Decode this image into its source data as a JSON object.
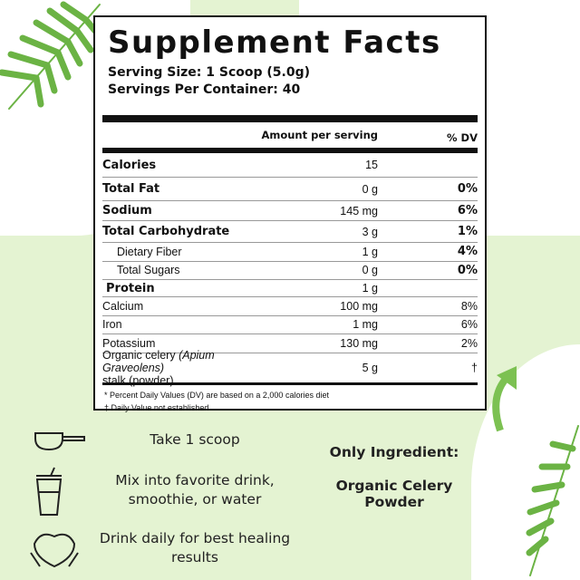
{
  "facts": {
    "title": "Supplement Facts",
    "serving_size": "Serving Size: 1 Scoop (5.0g)",
    "servings_per_container": "Servings Per Container: 40",
    "amount_header": "Amount per serving",
    "dv_header": "% DV",
    "rows": [
      {
        "name": "Calories",
        "amount": "15",
        "dv": ""
      },
      {
        "name": "Total Fat",
        "amount": "0 g",
        "dv": "0%"
      },
      {
        "name": "Sodium",
        "amount": "145 mg",
        "dv": "6%"
      },
      {
        "name": "Total Carbohydrate",
        "amount": "3 g",
        "dv": "1%"
      },
      {
        "name": "Dietary Fiber",
        "amount": "1 g",
        "dv": "4%"
      },
      {
        "name": "Total Sugars",
        "amount": "0 g",
        "dv": "0%"
      },
      {
        "name": "Protein",
        "amount": "1 g",
        "dv": ""
      },
      {
        "name": "Calcium",
        "amount": "100 mg",
        "dv": "8%"
      },
      {
        "name": "Iron",
        "amount": "1 mg",
        "dv": "6%"
      },
      {
        "name": "Potassium",
        "amount": "130 mg",
        "dv": "2%"
      }
    ],
    "celery": {
      "name_prefix": "Organic celery ",
      "name_latin": "(Apium Graveolens)",
      "name_suffix": "stalk (powder)",
      "amount": "5 g",
      "dv": "†"
    },
    "footnote_1": "* Percent Daily Values (DV) are based on a 2,000 calories diet",
    "footnote_2": "† Daily Value not established."
  },
  "steps": [
    {
      "icon": "scoop-icon",
      "text": "Take 1 scoop"
    },
    {
      "icon": "drink-cup-icon",
      "text": "Mix into favorite drink, smoothie, or water"
    },
    {
      "icon": "heart-hands-icon",
      "text": "Drink daily for best healing results"
    }
  ],
  "ingredient": {
    "label": "Only Ingredient:",
    "value": "Organic Celery Powder"
  },
  "colors": {
    "background": "#e4f3d2",
    "leaf": "#6bb344",
    "arrow": "#7cc152"
  }
}
